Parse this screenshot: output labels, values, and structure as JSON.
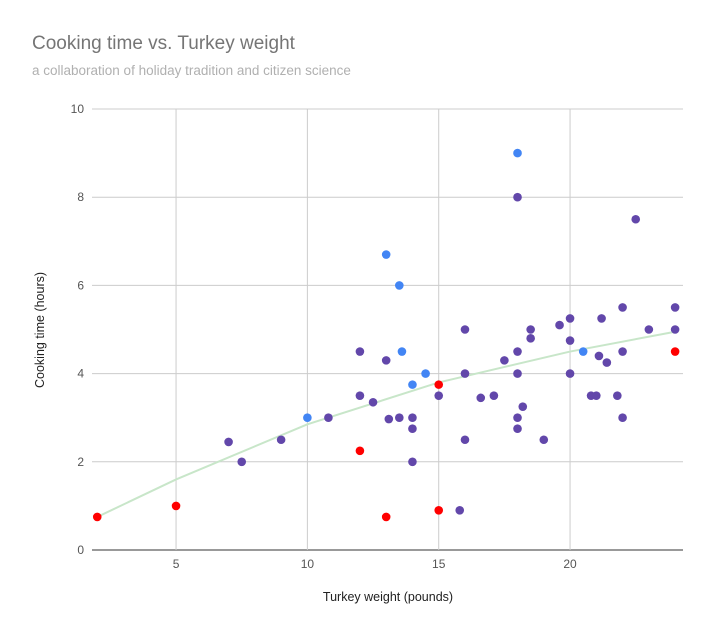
{
  "chart_data": {
    "type": "scatter",
    "title": "Cooking time vs. Turkey weight",
    "subtitle": "a collaboration of holiday tradition and citizen science",
    "xlabel": "Turkey weight (pounds)",
    "ylabel": "Cooking time (hours)",
    "xlim": [
      1.8,
      24.3
    ],
    "ylim": [
      0,
      10
    ],
    "xticks": [
      5,
      10,
      15,
      20
    ],
    "yticks": [
      0,
      2,
      4,
      6,
      8,
      10
    ],
    "grid": true,
    "legend": "none",
    "colors": {
      "purple": "#6247aa",
      "blue": "#4285f4",
      "red": "#ff0000",
      "trendline": "#c8e6c9"
    },
    "series": [
      {
        "color": "purple",
        "points": [
          [
            7,
            2.45
          ],
          [
            7.5,
            2
          ],
          [
            9,
            2.5
          ],
          [
            10.8,
            3
          ],
          [
            12,
            4.5
          ],
          [
            12,
            3.5
          ],
          [
            12.5,
            3.35
          ],
          [
            13,
            4.3
          ],
          [
            13.1,
            2.97
          ],
          [
            13.5,
            3
          ],
          [
            14,
            3
          ],
          [
            14,
            2.75
          ],
          [
            14,
            2
          ],
          [
            15,
            3.5
          ],
          [
            15.8,
            0.9
          ],
          [
            16,
            5
          ],
          [
            16,
            4
          ],
          [
            16,
            2.5
          ],
          [
            16.6,
            3.45
          ],
          [
            17.1,
            3.5
          ],
          [
            17.5,
            4.3
          ],
          [
            18,
            8
          ],
          [
            18,
            4.5
          ],
          [
            18,
            4
          ],
          [
            18,
            3
          ],
          [
            18,
            2.75
          ],
          [
            18.2,
            3.25
          ],
          [
            18.5,
            5
          ],
          [
            18.5,
            4.8
          ],
          [
            19,
            2.5
          ],
          [
            19.6,
            5.1
          ],
          [
            20,
            5.25
          ],
          [
            20,
            4.75
          ],
          [
            20,
            4
          ],
          [
            20.8,
            3.5
          ],
          [
            21,
            3.5
          ],
          [
            21.1,
            4.4
          ],
          [
            21.2,
            5.25
          ],
          [
            21.4,
            4.25
          ],
          [
            21.8,
            3.5
          ],
          [
            22,
            5.5
          ],
          [
            22,
            4.5
          ],
          [
            22,
            3
          ],
          [
            22.5,
            7.5
          ],
          [
            23,
            5
          ],
          [
            24,
            5.5
          ],
          [
            24,
            5
          ]
        ]
      },
      {
        "color": "blue",
        "points": [
          [
            10,
            3
          ],
          [
            13,
            6.7
          ],
          [
            13.5,
            6
          ],
          [
            13.6,
            4.5
          ],
          [
            14,
            3.75
          ],
          [
            14.5,
            4
          ],
          [
            18,
            9
          ],
          [
            20.5,
            4.5
          ]
        ]
      },
      {
        "color": "red",
        "points": [
          [
            2,
            0.75
          ],
          [
            5,
            1
          ],
          [
            12,
            2.25
          ],
          [
            13,
            0.75
          ],
          [
            15,
            3.75
          ],
          [
            15,
            0.9
          ],
          [
            24,
            4.5
          ]
        ]
      }
    ],
    "trendline": {
      "color": "trendline",
      "points": [
        [
          2,
          0.75
        ],
        [
          5,
          1.6
        ],
        [
          10,
          2.85
        ],
        [
          15,
          3.8
        ],
        [
          20,
          4.5
        ],
        [
          24,
          4.95
        ]
      ]
    }
  }
}
